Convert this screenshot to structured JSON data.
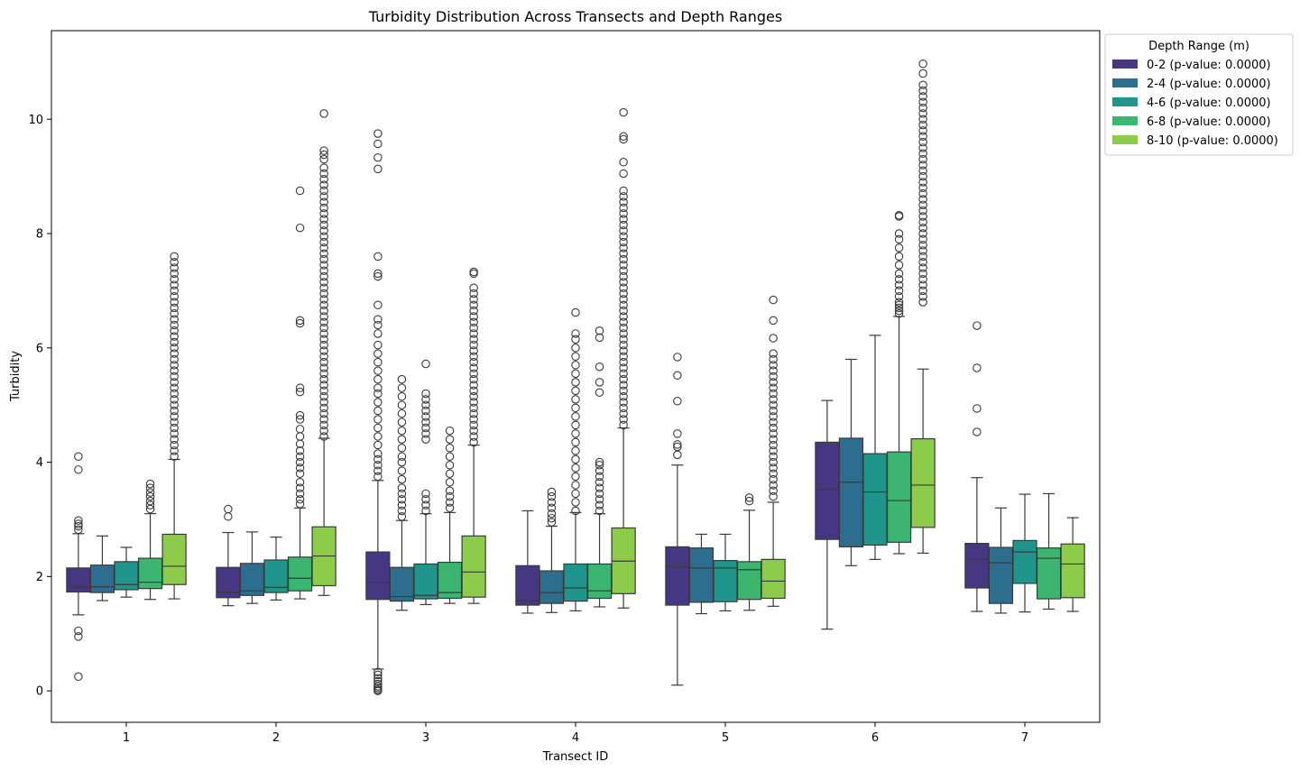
{
  "chart_data": {
    "type": "box",
    "title": "Turbidity Distribution Across Transects and Depth Ranges",
    "xlabel": "Transect ID",
    "ylabel": "Turbidity",
    "ylim": [
      -0.55,
      11.55
    ],
    "yticks": [
      0,
      2,
      4,
      6,
      8,
      10
    ],
    "categories": [
      "1",
      "2",
      "3",
      "4",
      "5",
      "6",
      "7"
    ],
    "legend": {
      "title": "Depth Range (m)",
      "placement": "outside-top-right"
    },
    "series": [
      {
        "name": "0-2 (p-value: 0.0000)",
        "color": "#453781",
        "boxes": [
          {
            "whislo": 1.33,
            "q1": 1.73,
            "med": 1.82,
            "q3": 2.15,
            "whishi": 2.75,
            "fliers": [
              0.25,
              0.95,
              1.05,
              2.82,
              2.88,
              2.92,
              2.98,
              3.87,
              4.1
            ]
          },
          {
            "whislo": 1.49,
            "q1": 1.63,
            "med": 1.73,
            "q3": 2.16,
            "whishi": 2.77,
            "fliers": [
              3.05,
              3.18
            ]
          },
          {
            "whislo": 0.38,
            "q1": 1.6,
            "med": 1.9,
            "q3": 2.43,
            "whishi": 3.68,
            "fliers": [
              0.0,
              0.02,
              0.05,
              0.08,
              0.12,
              0.17,
              0.22,
              0.28,
              0.33,
              3.75,
              3.85,
              3.95,
              4.05,
              4.15,
              4.3,
              4.45,
              4.6,
              4.75,
              4.9,
              5.05,
              5.2,
              5.3,
              5.45,
              5.6,
              5.75,
              5.9,
              6.05,
              6.25,
              6.4,
              6.5,
              6.75,
              7.25,
              7.3,
              7.6,
              9.13,
              9.33,
              9.57,
              9.75
            ]
          },
          {
            "whislo": 1.36,
            "q1": 1.5,
            "med": 1.58,
            "q3": 2.19,
            "whishi": 3.15,
            "fliers": []
          },
          {
            "whislo": 0.1,
            "q1": 1.5,
            "med": 2.17,
            "q3": 2.52,
            "whishi": 3.95,
            "fliers": [
              4.13,
              4.27,
              4.31,
              4.5,
              5.07,
              5.52,
              5.84
            ]
          },
          {
            "whislo": 1.08,
            "q1": 2.65,
            "med": 3.52,
            "q3": 4.35,
            "whishi": 5.08,
            "fliers": []
          },
          {
            "whislo": 1.39,
            "q1": 1.8,
            "med": 2.31,
            "q3": 2.58,
            "whishi": 3.73,
            "fliers": [
              4.53,
              4.94,
              5.65,
              6.39
            ]
          }
        ]
      },
      {
        "name": "2-4 (p-value: 0.0000)",
        "color": "#2d6e8e",
        "boxes": [
          {
            "whislo": 1.58,
            "q1": 1.72,
            "med": 1.82,
            "q3": 2.2,
            "whishi": 2.71,
            "fliers": []
          },
          {
            "whislo": 1.53,
            "q1": 1.67,
            "med": 1.75,
            "q3": 2.23,
            "whishi": 2.78,
            "fliers": []
          },
          {
            "whislo": 1.41,
            "q1": 1.57,
            "med": 1.65,
            "q3": 2.16,
            "whishi": 2.98,
            "fliers": [
              3.05,
              3.15,
              3.25,
              3.35,
              3.45,
              3.55,
              3.7,
              3.85,
              4.0,
              4.1,
              4.25,
              4.4,
              4.55,
              4.7,
              4.85,
              5.0,
              5.15,
              5.3,
              5.45
            ]
          },
          {
            "whislo": 1.37,
            "q1": 1.53,
            "med": 1.72,
            "q3": 2.1,
            "whishi": 2.88,
            "fliers": [
              2.95,
              3.02,
              3.1,
              3.2,
              3.3,
              3.4,
              3.48
            ]
          },
          {
            "whislo": 1.35,
            "q1": 1.55,
            "med": 2.15,
            "q3": 2.5,
            "whishi": 2.74,
            "fliers": []
          },
          {
            "whislo": 2.19,
            "q1": 2.52,
            "med": 3.65,
            "q3": 4.42,
            "whishi": 5.8,
            "fliers": []
          },
          {
            "whislo": 1.36,
            "q1": 1.53,
            "med": 2.24,
            "q3": 2.51,
            "whishi": 3.2,
            "fliers": []
          }
        ]
      },
      {
        "name": "4-6 (p-value: 0.0000)",
        "color": "#1f958b",
        "boxes": [
          {
            "whislo": 1.64,
            "q1": 1.77,
            "med": 1.86,
            "q3": 2.26,
            "whishi": 2.51,
            "fliers": []
          },
          {
            "whislo": 1.59,
            "q1": 1.72,
            "med": 1.81,
            "q3": 2.29,
            "whishi": 2.69,
            "fliers": []
          },
          {
            "whislo": 1.51,
            "q1": 1.61,
            "med": 1.67,
            "q3": 2.22,
            "whishi": 3.1,
            "fliers": [
              3.15,
              3.25,
              3.35,
              3.45,
              4.4,
              4.5,
              4.6,
              4.7,
              4.8,
              4.9,
              5.0,
              5.1,
              5.2,
              5.72
            ]
          },
          {
            "whislo": 1.4,
            "q1": 1.57,
            "med": 1.8,
            "q3": 2.22,
            "whishi": 3.12,
            "fliers": [
              3.15,
              3.3,
              3.45,
              3.6,
              3.75,
              3.9,
              4.05,
              4.2,
              4.35,
              4.5,
              4.65,
              4.8,
              4.95,
              5.1,
              5.25,
              5.4,
              5.55,
              5.7,
              5.85,
              6.0,
              6.15,
              6.25,
              6.62
            ]
          },
          {
            "whislo": 1.4,
            "q1": 1.56,
            "med": 2.15,
            "q3": 2.28,
            "whishi": 2.74,
            "fliers": []
          },
          {
            "whislo": 2.3,
            "q1": 2.55,
            "med": 3.48,
            "q3": 4.15,
            "whishi": 6.22,
            "fliers": []
          },
          {
            "whislo": 1.38,
            "q1": 1.88,
            "med": 2.43,
            "q3": 2.63,
            "whishi": 3.44,
            "fliers": []
          }
        ]
      },
      {
        "name": "6-8 (p-value: 0.0000)",
        "color": "#3bb56f",
        "boxes": [
          {
            "whislo": 1.6,
            "q1": 1.79,
            "med": 1.9,
            "q3": 2.32,
            "whishi": 3.1,
            "fliers": [
              3.18,
              3.25,
              3.32,
              3.4,
              3.47,
              3.55,
              3.62
            ]
          },
          {
            "whislo": 1.61,
            "q1": 1.75,
            "med": 1.97,
            "q3": 2.34,
            "whishi": 3.2,
            "fliers": [
              3.27,
              3.35,
              3.45,
              3.55,
              3.65,
              3.8,
              3.9,
              4.0,
              4.1,
              4.2,
              4.32,
              4.45,
              4.58,
              4.75,
              4.82,
              5.23,
              5.3,
              6.43,
              6.48,
              8.1,
              8.75
            ]
          },
          {
            "whislo": 1.53,
            "q1": 1.62,
            "med": 1.72,
            "q3": 2.25,
            "whishi": 3.12,
            "fliers": [
              3.2,
              3.3,
              3.4,
              3.5,
              3.65,
              3.8,
              3.95,
              4.1,
              4.25,
              4.4,
              4.55
            ]
          },
          {
            "whislo": 1.47,
            "q1": 1.62,
            "med": 1.75,
            "q3": 2.22,
            "whishi": 3.1,
            "fliers": [
              3.15,
              3.25,
              3.35,
              3.45,
              3.55,
              3.65,
              3.75,
              3.85,
              3.95,
              4.0,
              5.22,
              5.4,
              5.67,
              6.18,
              6.3
            ]
          },
          {
            "whislo": 1.41,
            "q1": 1.6,
            "med": 2.12,
            "q3": 2.26,
            "whishi": 3.16,
            "fliers": [
              3.32,
              3.38
            ]
          },
          {
            "whislo": 2.4,
            "q1": 2.6,
            "med": 3.33,
            "q3": 4.18,
            "whishi": 6.55,
            "fliers": [
              6.6,
              6.65,
              6.7,
              6.75,
              6.8,
              6.9,
              7.0,
              7.1,
              7.2,
              7.3,
              7.45,
              7.6,
              7.75,
              7.9,
              8.0,
              8.3,
              8.32
            ]
          },
          {
            "whislo": 1.43,
            "q1": 1.61,
            "med": 2.32,
            "q3": 2.5,
            "whishi": 3.45,
            "fliers": []
          }
        ]
      },
      {
        "name": "8-10 (p-value: 0.0000)",
        "color": "#8ccc4a",
        "boxes": [
          {
            "whislo": 1.61,
            "q1": 1.86,
            "med": 2.18,
            "q3": 2.74,
            "whishi": 4.05,
            "fliers": [
              4.1,
              4.2,
              4.3,
              4.4,
              4.5,
              4.6,
              4.7,
              4.8,
              4.9,
              5.0,
              5.1,
              5.2,
              5.3,
              5.4,
              5.5,
              5.6,
              5.7,
              5.8,
              5.9,
              6.0,
              6.1,
              6.2,
              6.3,
              6.4,
              6.5,
              6.6,
              6.7,
              6.8,
              6.9,
              7.0,
              7.1,
              7.2,
              7.3,
              7.4,
              7.5,
              7.6
            ]
          },
          {
            "whislo": 1.67,
            "q1": 1.84,
            "med": 2.36,
            "q3": 2.87,
            "whishi": 4.42,
            "fliers": [
              4.45,
              4.55,
              4.65,
              4.75,
              4.85,
              4.95,
              5.05,
              5.15,
              5.25,
              5.35,
              5.45,
              5.55,
              5.65,
              5.75,
              5.85,
              5.95,
              6.05,
              6.15,
              6.25,
              6.35,
              6.45,
              6.55,
              6.65,
              6.75,
              6.85,
              6.95,
              7.05,
              7.15,
              7.25,
              7.35,
              7.45,
              7.55,
              7.65,
              7.75,
              7.85,
              7.95,
              8.05,
              8.15,
              8.25,
              8.35,
              8.45,
              8.55,
              8.65,
              8.75,
              8.85,
              8.95,
              9.05,
              9.15,
              9.3,
              9.38,
              9.45,
              10.1
            ]
          },
          {
            "whislo": 1.53,
            "q1": 1.64,
            "med": 2.08,
            "q3": 2.71,
            "whishi": 4.3,
            "fliers": [
              4.35,
              4.45,
              4.55,
              4.65,
              4.75,
              4.85,
              4.95,
              5.05,
              5.15,
              5.25,
              5.35,
              5.45,
              5.55,
              5.65,
              5.75,
              5.85,
              5.95,
              6.05,
              6.15,
              6.25,
              6.35,
              6.45,
              6.55,
              6.65,
              6.75,
              6.85,
              6.95,
              7.05,
              7.3,
              7.33
            ]
          },
          {
            "whislo": 1.45,
            "q1": 1.7,
            "med": 2.27,
            "q3": 2.85,
            "whishi": 4.6,
            "fliers": [
              4.65,
              4.75,
              4.85,
              4.95,
              5.05,
              5.15,
              5.25,
              5.35,
              5.45,
              5.55,
              5.65,
              5.75,
              5.85,
              5.95,
              6.05,
              6.15,
              6.25,
              6.35,
              6.45,
              6.55,
              6.65,
              6.75,
              6.85,
              6.95,
              7.05,
              7.15,
              7.25,
              7.35,
              7.45,
              7.55,
              7.65,
              7.75,
              7.85,
              7.95,
              8.05,
              8.15,
              8.25,
              8.35,
              8.45,
              8.55,
              8.65,
              8.75,
              9.05,
              9.25,
              9.65,
              9.7,
              10.12
            ]
          },
          {
            "whislo": 1.48,
            "q1": 1.62,
            "med": 1.92,
            "q3": 2.3,
            "whishi": 3.3,
            "fliers": [
              3.4,
              3.5,
              3.6,
              3.7,
              3.8,
              3.9,
              4.0,
              4.1,
              4.2,
              4.3,
              4.4,
              4.5,
              4.6,
              4.7,
              4.8,
              4.9,
              5.0,
              5.1,
              5.2,
              5.3,
              5.4,
              5.5,
              5.6,
              5.7,
              5.8,
              5.9,
              6.17,
              6.48,
              6.84
            ]
          },
          {
            "whislo": 2.41,
            "q1": 2.86,
            "med": 3.6,
            "q3": 4.41,
            "whishi": 5.63,
            "fliers": [
              6.8,
              6.9,
              7.0,
              7.1,
              7.2,
              7.3,
              7.4,
              7.5,
              7.6,
              7.7,
              7.8,
              7.9,
              8.0,
              8.1,
              8.2,
              8.3,
              8.4,
              8.5,
              8.6,
              8.7,
              8.8,
              8.9,
              9.0,
              9.1,
              9.2,
              9.3,
              9.4,
              9.5,
              9.6,
              9.7,
              9.8,
              9.9,
              10.0,
              10.1,
              10.2,
              10.3,
              10.4,
              10.5,
              10.6,
              10.8,
              10.97
            ]
          },
          {
            "whislo": 1.39,
            "q1": 1.63,
            "med": 2.22,
            "q3": 2.57,
            "whishi": 3.03,
            "fliers": []
          }
        ]
      }
    ]
  }
}
